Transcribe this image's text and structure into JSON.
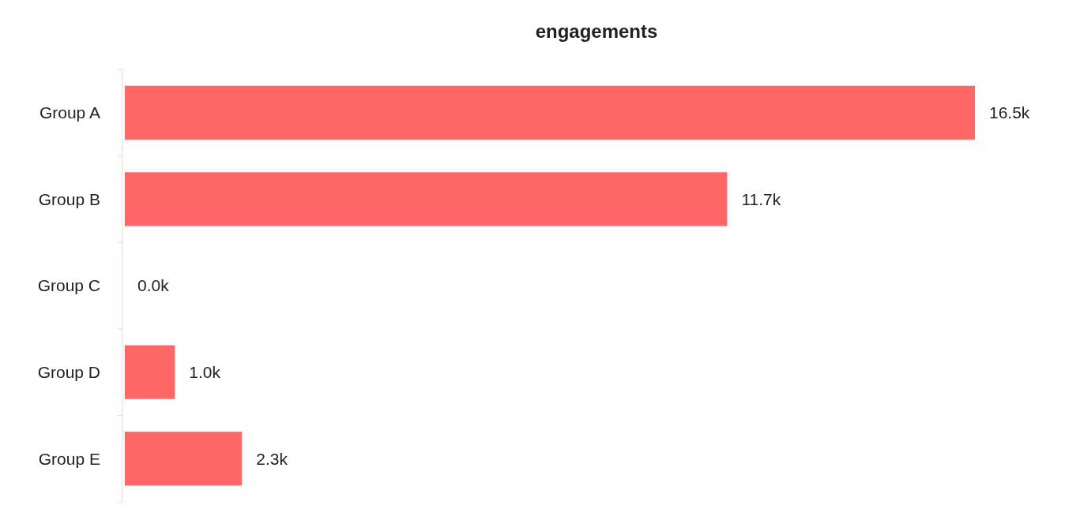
{
  "chart_data": {
    "type": "bar",
    "orientation": "horizontal",
    "title": "engagements",
    "categories": [
      "Group A",
      "Group B",
      "Group C",
      "Group D",
      "Group E"
    ],
    "values": [
      16.5,
      11.7,
      0,
      1.0,
      2.3
    ],
    "value_labels": [
      "16.5k",
      "11.7k",
      "0.0k",
      "1.0k",
      "2.3k"
    ],
    "color": "#ff6666"
  }
}
